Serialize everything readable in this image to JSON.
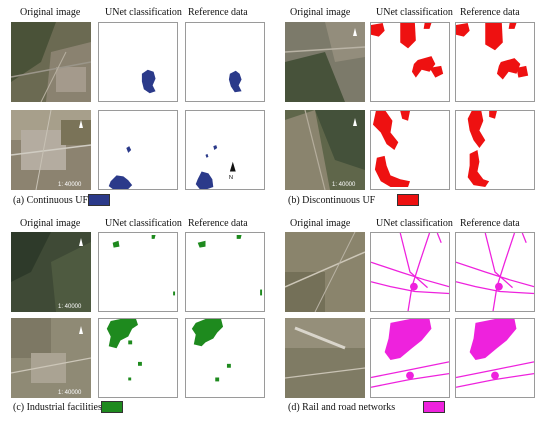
{
  "headers": {
    "original": "Original image",
    "unet": "UNet classification",
    "reference": "Reference data"
  },
  "scale_label": "1: 40000",
  "north_label": "N",
  "panels": {
    "a": {
      "caption": "(a) Continuous UF",
      "color": "#2b3a8a"
    },
    "b": {
      "caption": "(b) Discontinuous UF",
      "color": "#ee1111"
    },
    "c": {
      "caption": "(c) Industrial facilities",
      "color": "#1e8a1e"
    },
    "d": {
      "caption": "(d) Rail and road networks",
      "color": "#ee22dd"
    }
  }
}
